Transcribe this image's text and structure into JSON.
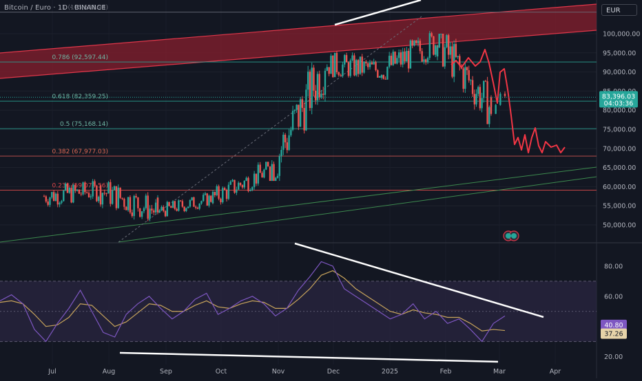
{
  "header": {
    "symbol_title": "Bitcoin / Euro · 1D · BINANCE",
    "currency": "EUR"
  },
  "colors": {
    "background": "#131722",
    "up": "#26a69a",
    "down": "#ef5350",
    "fib_line": "#2e7d6b",
    "fib_label": "#6fb5a3",
    "projection": "#f23645",
    "channel_fill": "#8b1e2e",
    "rsi_line": "#7e57c2",
    "rsi_ma": "#c9a55c",
    "rsi_band": "#2a2540",
    "trendline": "#ffffff"
  },
  "chart_data": [
    {
      "type": "candlestick",
      "x_axis": [
        "Jul",
        "Aug",
        "Sep",
        "Oct",
        "Nov",
        "Dec",
        "2025",
        "Feb",
        "Mar",
        "Apr"
      ],
      "y_axis": {
        "ticks": [
          "50,000.00",
          "55,000.00",
          "60,000.00",
          "65,000.00",
          "70,000.00",
          "75,000.00",
          "80,000.00",
          "85,000.00",
          "90,000.00",
          "95,000.00",
          "100,000.00"
        ],
        "range": [
          46000,
          107000
        ],
        "grid": true
      },
      "last_price": {
        "value": "83,396.03",
        "countdown": "04:03:36"
      },
      "fib_levels": [
        {
          "label": "1 (105,638.94)",
          "value": 105638.94
        },
        {
          "label": "0.786 (92,597.44)",
          "value": 92597.44
        },
        {
          "label": "0.618 (82,359.25)",
          "value": 82359.25
        },
        {
          "label": "0.5 (75,168.14)",
          "value": 75168.14
        },
        {
          "label": "0.382 (67,977.03)",
          "value": 67977.03
        },
        {
          "label": "0.236 (59,079.56)",
          "value": 59079.56
        }
      ],
      "monthly_ohlc": [
        {
          "month": "Jul",
          "open": 57500,
          "high": 62000,
          "low": 49500,
          "close": 59000
        },
        {
          "month": "Aug",
          "open": 59000,
          "high": 63000,
          "low": 46500,
          "close": 53500
        },
        {
          "month": "Sep",
          "open": 53500,
          "high": 59000,
          "low": 50500,
          "close": 57000
        },
        {
          "month": "Oct",
          "open": 57000,
          "high": 66500,
          "low": 54000,
          "close": 64500
        },
        {
          "month": "Nov",
          "open": 64500,
          "high": 93000,
          "low": 61500,
          "close": 92000
        },
        {
          "month": "Dec",
          "open": 92000,
          "high": 103000,
          "low": 88500,
          "close": 90500
        },
        {
          "month": "Jan",
          "open": 90500,
          "high": 105639,
          "low": 88000,
          "close": 98000
        },
        {
          "month": "Feb",
          "open": 98000,
          "high": 100000,
          "low": 75500,
          "close": 80500
        },
        {
          "month": "Mar",
          "open": 80500,
          "high": 90500,
          "low": 75000,
          "close": 83396
        }
      ],
      "projection": [
        {
          "date": "Feb",
          "value": 95500
        },
        {
          "date": "Mar",
          "value": 83000
        },
        {
          "date": "Mar",
          "value": 71500
        },
        {
          "date": "Apr",
          "value": 70000
        }
      ]
    },
    {
      "type": "line",
      "indicator": "RSI",
      "y_axis": {
        "ticks": [
          "20.00",
          "40.00",
          "60.00",
          "80.00"
        ],
        "range": [
          15,
          90
        ],
        "band": [
          30,
          70
        ]
      },
      "rsi_value": "40.80",
      "rsi_ma_value": "37.26",
      "series": [
        {
          "values": [
            57,
            61,
            55,
            38,
            30,
            42,
            52,
            64,
            50,
            36,
            33,
            48,
            55,
            60,
            52,
            45,
            50,
            58,
            62,
            48,
            52,
            57,
            60,
            55,
            47,
            52,
            64,
            73,
            83,
            80,
            65,
            60,
            55,
            50,
            45,
            48,
            55,
            45,
            50,
            42,
            45,
            38,
            30,
            42,
            47
          ]
        },
        {
          "values": [
            56,
            57,
            55,
            48,
            40,
            41,
            46,
            55,
            54,
            47,
            40,
            43,
            49,
            55,
            54,
            50,
            50,
            54,
            57,
            53,
            52,
            55,
            57,
            56,
            52,
            52,
            58,
            65,
            74,
            77,
            72,
            65,
            60,
            55,
            50,
            48,
            51,
            49,
            48,
            46,
            46,
            42,
            37,
            38,
            37.3
          ]
        }
      ]
    }
  ]
}
